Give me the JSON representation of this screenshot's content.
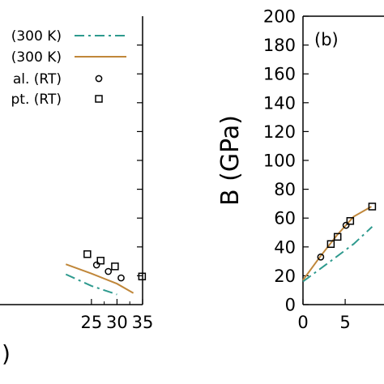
{
  "chart_data": [
    {
      "type": "line",
      "panel": "left (a), cropped",
      "xlim": [
        0,
        35
      ],
      "ylim": [
        0,
        200
      ],
      "x_ticks": [
        25,
        30,
        35
      ],
      "xlabel_fragment": ")",
      "legend": [
        {
          "text": "(300 K)",
          "style": "dash-dot",
          "color": "#2e9a8e"
        },
        {
          "text": "(300 K)",
          "style": "solid",
          "color": "#c0873a"
        },
        {
          "text": "al. (RT)",
          "marker": "circle",
          "color": "#000000"
        },
        {
          "text": "pt. (RT)",
          "marker": "square",
          "color": "#000000"
        }
      ],
      "series": [
        {
          "style": "solid",
          "color": "#c0873a",
          "x": [
            20,
            25,
            30,
            33.2
          ],
          "y": [
            28,
            21.5,
            14.5,
            8
          ]
        },
        {
          "style": "dash-dot",
          "color": "#2e9a8e",
          "x": [
            20,
            25,
            30
          ],
          "y": [
            21,
            13,
            7
          ]
        },
        {
          "marker": "circle",
          "x": [
            26,
            28.3,
            30.8
          ],
          "y": [
            27.5,
            23,
            18.5
          ]
        },
        {
          "marker": "square",
          "x": [
            24.2,
            26.8,
            29.6,
            34.9
          ],
          "y": [
            35,
            30.5,
            26.5,
            19.5
          ]
        }
      ]
    },
    {
      "type": "line",
      "panel": "right (b), cropped",
      "annotation": "(b)",
      "ylabel": "B (GPa)",
      "xlim": [
        0,
        9.6
      ],
      "ylim": [
        0,
        200
      ],
      "x_ticks": [
        0,
        5
      ],
      "y_ticks": [
        0,
        20,
        40,
        60,
        80,
        100,
        120,
        140,
        160,
        180,
        200
      ],
      "series": [
        {
          "style": "solid",
          "color": "#c0873a",
          "x": [
            0,
            2,
            4,
            6,
            8.1
          ],
          "y": [
            17,
            33,
            48,
            61,
            68
          ]
        },
        {
          "style": "dash-dot",
          "color": "#2e9a8e",
          "x": [
            0,
            3,
            6,
            8.2
          ],
          "y": [
            16,
            29,
            42,
            54
          ]
        },
        {
          "marker": "circle",
          "x": [
            2.1,
            5.1
          ],
          "y": [
            33,
            55
          ]
        },
        {
          "marker": "square",
          "x": [
            3.3,
            4.1,
            5.6,
            8.2
          ],
          "y": [
            42,
            47,
            58,
            68
          ]
        }
      ]
    }
  ]
}
